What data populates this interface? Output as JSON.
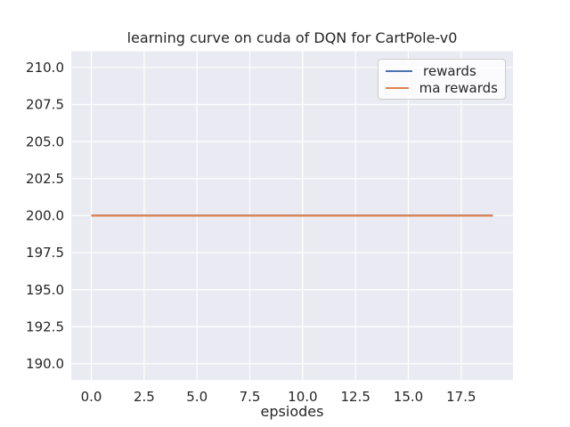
{
  "figure": {
    "background": "#ffffff",
    "panel_background": "#eaeaf2",
    "grid_color": "#ffffff",
    "text_color": "#262626",
    "legend_border_color": "#cccccc"
  },
  "chart_data": {
    "type": "line",
    "title": "learning curve on cuda of DQN for CartPole-v0",
    "xlabel": "epsiodes",
    "ylabel": "",
    "x": [
      0,
      1,
      2,
      3,
      4,
      5,
      6,
      7,
      8,
      9,
      10,
      11,
      12,
      13,
      14,
      15,
      16,
      17,
      18,
      19
    ],
    "series": [
      {
        "name": "rewards",
        "color": "#4c72b0",
        "values": [
          200,
          200,
          200,
          200,
          200,
          200,
          200,
          200,
          200,
          200,
          200,
          200,
          200,
          200,
          200,
          200,
          200,
          200,
          200,
          200
        ]
      },
      {
        "name": "ma rewards",
        "color": "#dd8452",
        "values": [
          200,
          200,
          200,
          200,
          200,
          200,
          200,
          200,
          200,
          200,
          200,
          200,
          200,
          200,
          200,
          200,
          200,
          200,
          200,
          200
        ]
      }
    ],
    "xlim": [
      -0.95,
      19.95
    ],
    "ylim": [
      188.9,
      211.1
    ],
    "xticks": [
      0,
      2.5,
      5,
      7.5,
      10,
      12.5,
      15,
      17.5
    ],
    "xtick_labels": [
      "0.0",
      "2.5",
      "5.0",
      "7.5",
      "10.0",
      "12.5",
      "15.0",
      "17.5"
    ],
    "yticks": [
      190,
      192.5,
      195,
      197.5,
      200,
      202.5,
      205,
      207.5,
      210
    ],
    "ytick_labels": [
      "190.0",
      "192.5",
      "195.0",
      "197.5",
      "200.0",
      "202.5",
      "205.0",
      "207.5",
      "210.0"
    ],
    "grid": true,
    "legend_position": "upper right"
  }
}
